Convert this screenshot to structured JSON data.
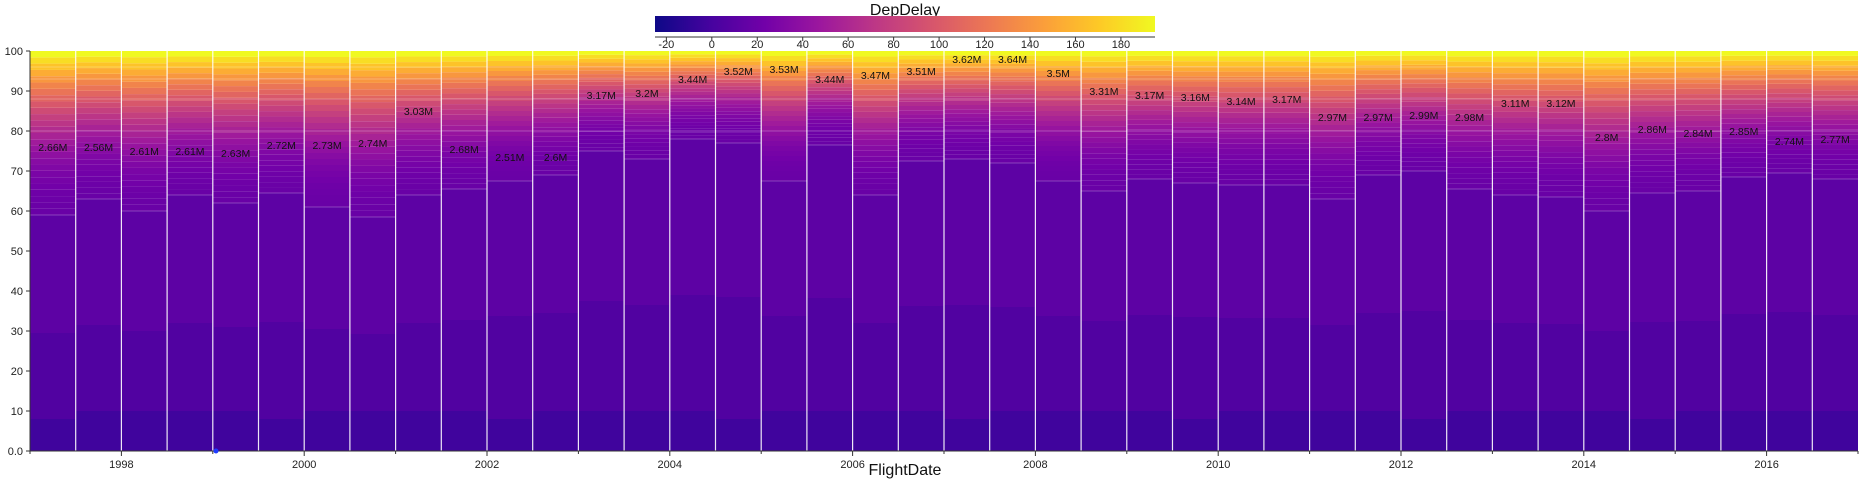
{
  "chart_data": {
    "type": "bar",
    "subtype": "stacked-percent-distribution",
    "xlabel": "FlightDate",
    "ylabel": "",
    "ylim": [
      0,
      100
    ],
    "y_ticks": [
      "0.0",
      "10",
      "20",
      "30",
      "40",
      "50",
      "60",
      "70",
      "80",
      "90",
      "100"
    ],
    "x_tick_labels": [
      "1998",
      "2000",
      "2002",
      "2004",
      "2006",
      "2008",
      "2010",
      "2012",
      "2014",
      "2016"
    ],
    "colorbar": {
      "title": "DepDelay",
      "ticks": [
        "-20",
        "0",
        "20",
        "40",
        "60",
        "80",
        "100",
        "120",
        "140",
        "160",
        "180"
      ],
      "range": [
        -25,
        195
      ],
      "colormap": "plasma",
      "colors": [
        "#0d0887",
        "#46039f",
        "#7201a8",
        "#9c179e",
        "#bd3786",
        "#d8576b",
        "#ed7953",
        "#fb9f3a",
        "#fdca26",
        "#f0f921"
      ]
    },
    "bar_labels": [
      "2.66M",
      "2.56M",
      "2.61M",
      "2.61M",
      "2.63M",
      "2.72M",
      "2.73M",
      "2.74M",
      "3.03M",
      "2.68M",
      "2.51M",
      "2.6M",
      "3.17M",
      "3.2M",
      "3.44M",
      "3.52M",
      "3.53M",
      "3.44M",
      "3.47M",
      "3.51M",
      "3.62M",
      "3.64M",
      "3.5M",
      "3.31M",
      "3.17M",
      "3.16M",
      "3.14M",
      "3.17M",
      "2.97M",
      "2.97M",
      "2.99M",
      "2.98M",
      "3.11M",
      "3.12M",
      "2.8M",
      "2.86M",
      "2.84M",
      "2.85M",
      "2.74M",
      "2.77M"
    ],
    "label_positions": [
      76,
      76,
      75,
      75,
      74.5,
      76.5,
      76.5,
      77,
      85,
      75.5,
      73.5,
      73.5,
      89,
      89.5,
      93,
      95,
      95.5,
      93,
      94,
      95,
      98,
      98,
      94.5,
      90,
      89,
      88.5,
      87.5,
      88,
      83.5,
      83.5,
      84,
      83.5,
      87,
      87,
      78.5,
      80.5,
      79.5,
      80,
      77.5,
      78
    ],
    "band_heights_primary": [
      59,
      63,
      60,
      64,
      62,
      64.5,
      61,
      58.5,
      64,
      65.5,
      67.5,
      69,
      75,
      73,
      78,
      77,
      67.5,
      76.5,
      64,
      72.5,
      73,
      72,
      67.5,
      65,
      68,
      67,
      66.5,
      66.5,
      63,
      69,
      70,
      65.5,
      64,
      63.5,
      60,
      64.5,
      65,
      68.5,
      69.5,
      68
    ]
  }
}
